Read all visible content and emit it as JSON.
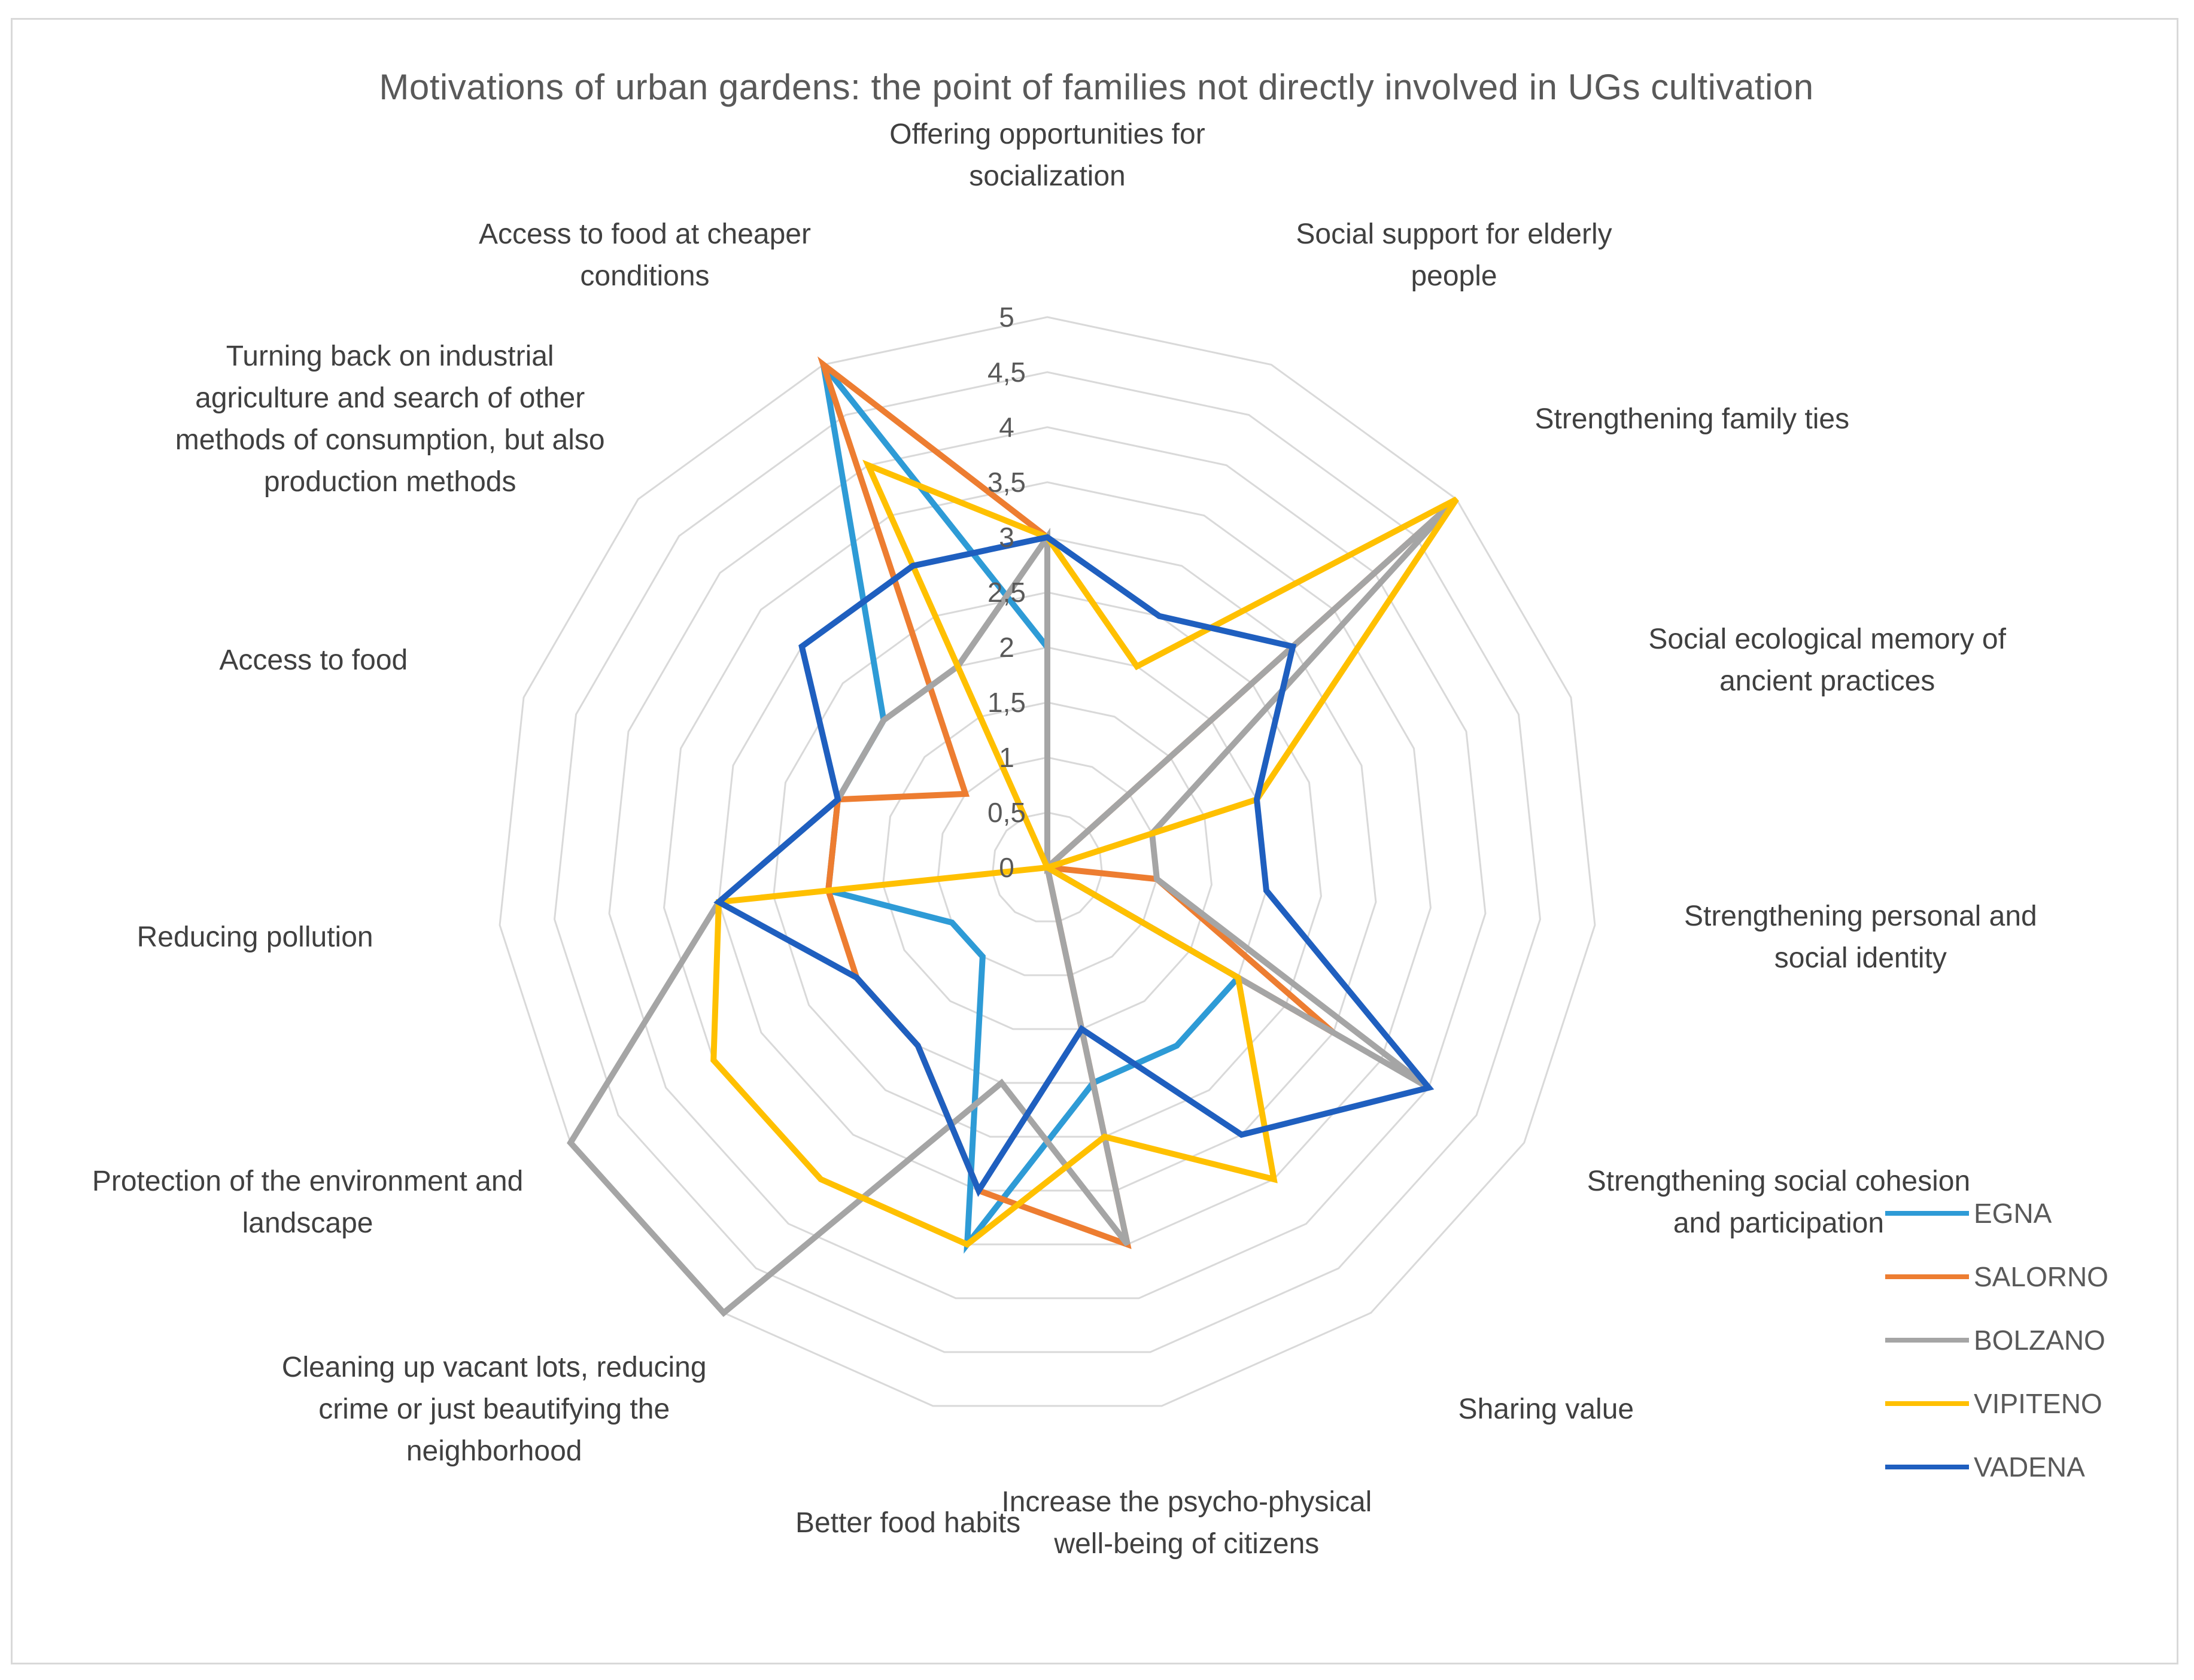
{
  "chart_data": {
    "type": "radar",
    "title": "Motivations of urban gardens: the point of families not directly involved in UGs cultivation",
    "categories": [
      "Offering opportunities for socialization",
      "Social support for elderly people",
      "Strengthening family ties",
      "Social ecological memory of ancient practices",
      "Strengthening personal and social identity",
      "Strengthening social cohesion and participation",
      "Sharing value",
      "Increase the psycho-physical well-being of citizens",
      "Better food habits",
      "Cleaning up vacant lots, reducing crime or just beautifying the neighborhood",
      "Protection of the environment and landscape",
      "Reducing pollution",
      "Access to food",
      "Turning back on industrial agriculture and search of other methods of consumption, but also production methods",
      "Access to food at cheaper conditions"
    ],
    "tick_labels": [
      "0",
      "0,5",
      "1",
      "1,5",
      "2",
      "2,5",
      "3",
      "3,5",
      "4",
      "4,5",
      "5"
    ],
    "rlim": [
      0,
      5
    ],
    "grid": true,
    "legend_position": "bottom-right",
    "series": [
      {
        "name": "EGNA",
        "color": "#2e9bd6",
        "values": [
          2,
          0,
          0,
          0,
          0,
          2,
          2,
          2,
          3.5,
          1,
          1,
          2,
          2,
          2,
          5
        ]
      },
      {
        "name": "SALORNO",
        "color": "#ed7d31",
        "values": [
          3,
          0,
          5,
          0,
          1,
          3,
          0,
          3.5,
          3,
          2,
          2,
          2,
          2,
          1,
          5
        ]
      },
      {
        "name": "BOLZANO",
        "color": "#a5a5a5",
        "values": [
          3,
          0,
          5,
          1,
          1,
          4,
          0,
          3.5,
          2,
          5,
          5,
          3,
          2,
          2,
          2
        ]
      },
      {
        "name": "VIPITENO",
        "color": "#ffc000",
        "values": [
          3,
          2,
          5,
          2,
          0,
          2,
          3.5,
          2.5,
          3.5,
          3.5,
          3.5,
          3,
          0,
          0,
          4
        ]
      },
      {
        "name": "VADENA",
        "color": "#1f5fbf",
        "values": [
          3,
          2.5,
          3,
          2,
          2,
          4,
          3,
          1.5,
          3,
          2,
          2,
          3,
          2,
          3,
          3
        ]
      }
    ]
  }
}
